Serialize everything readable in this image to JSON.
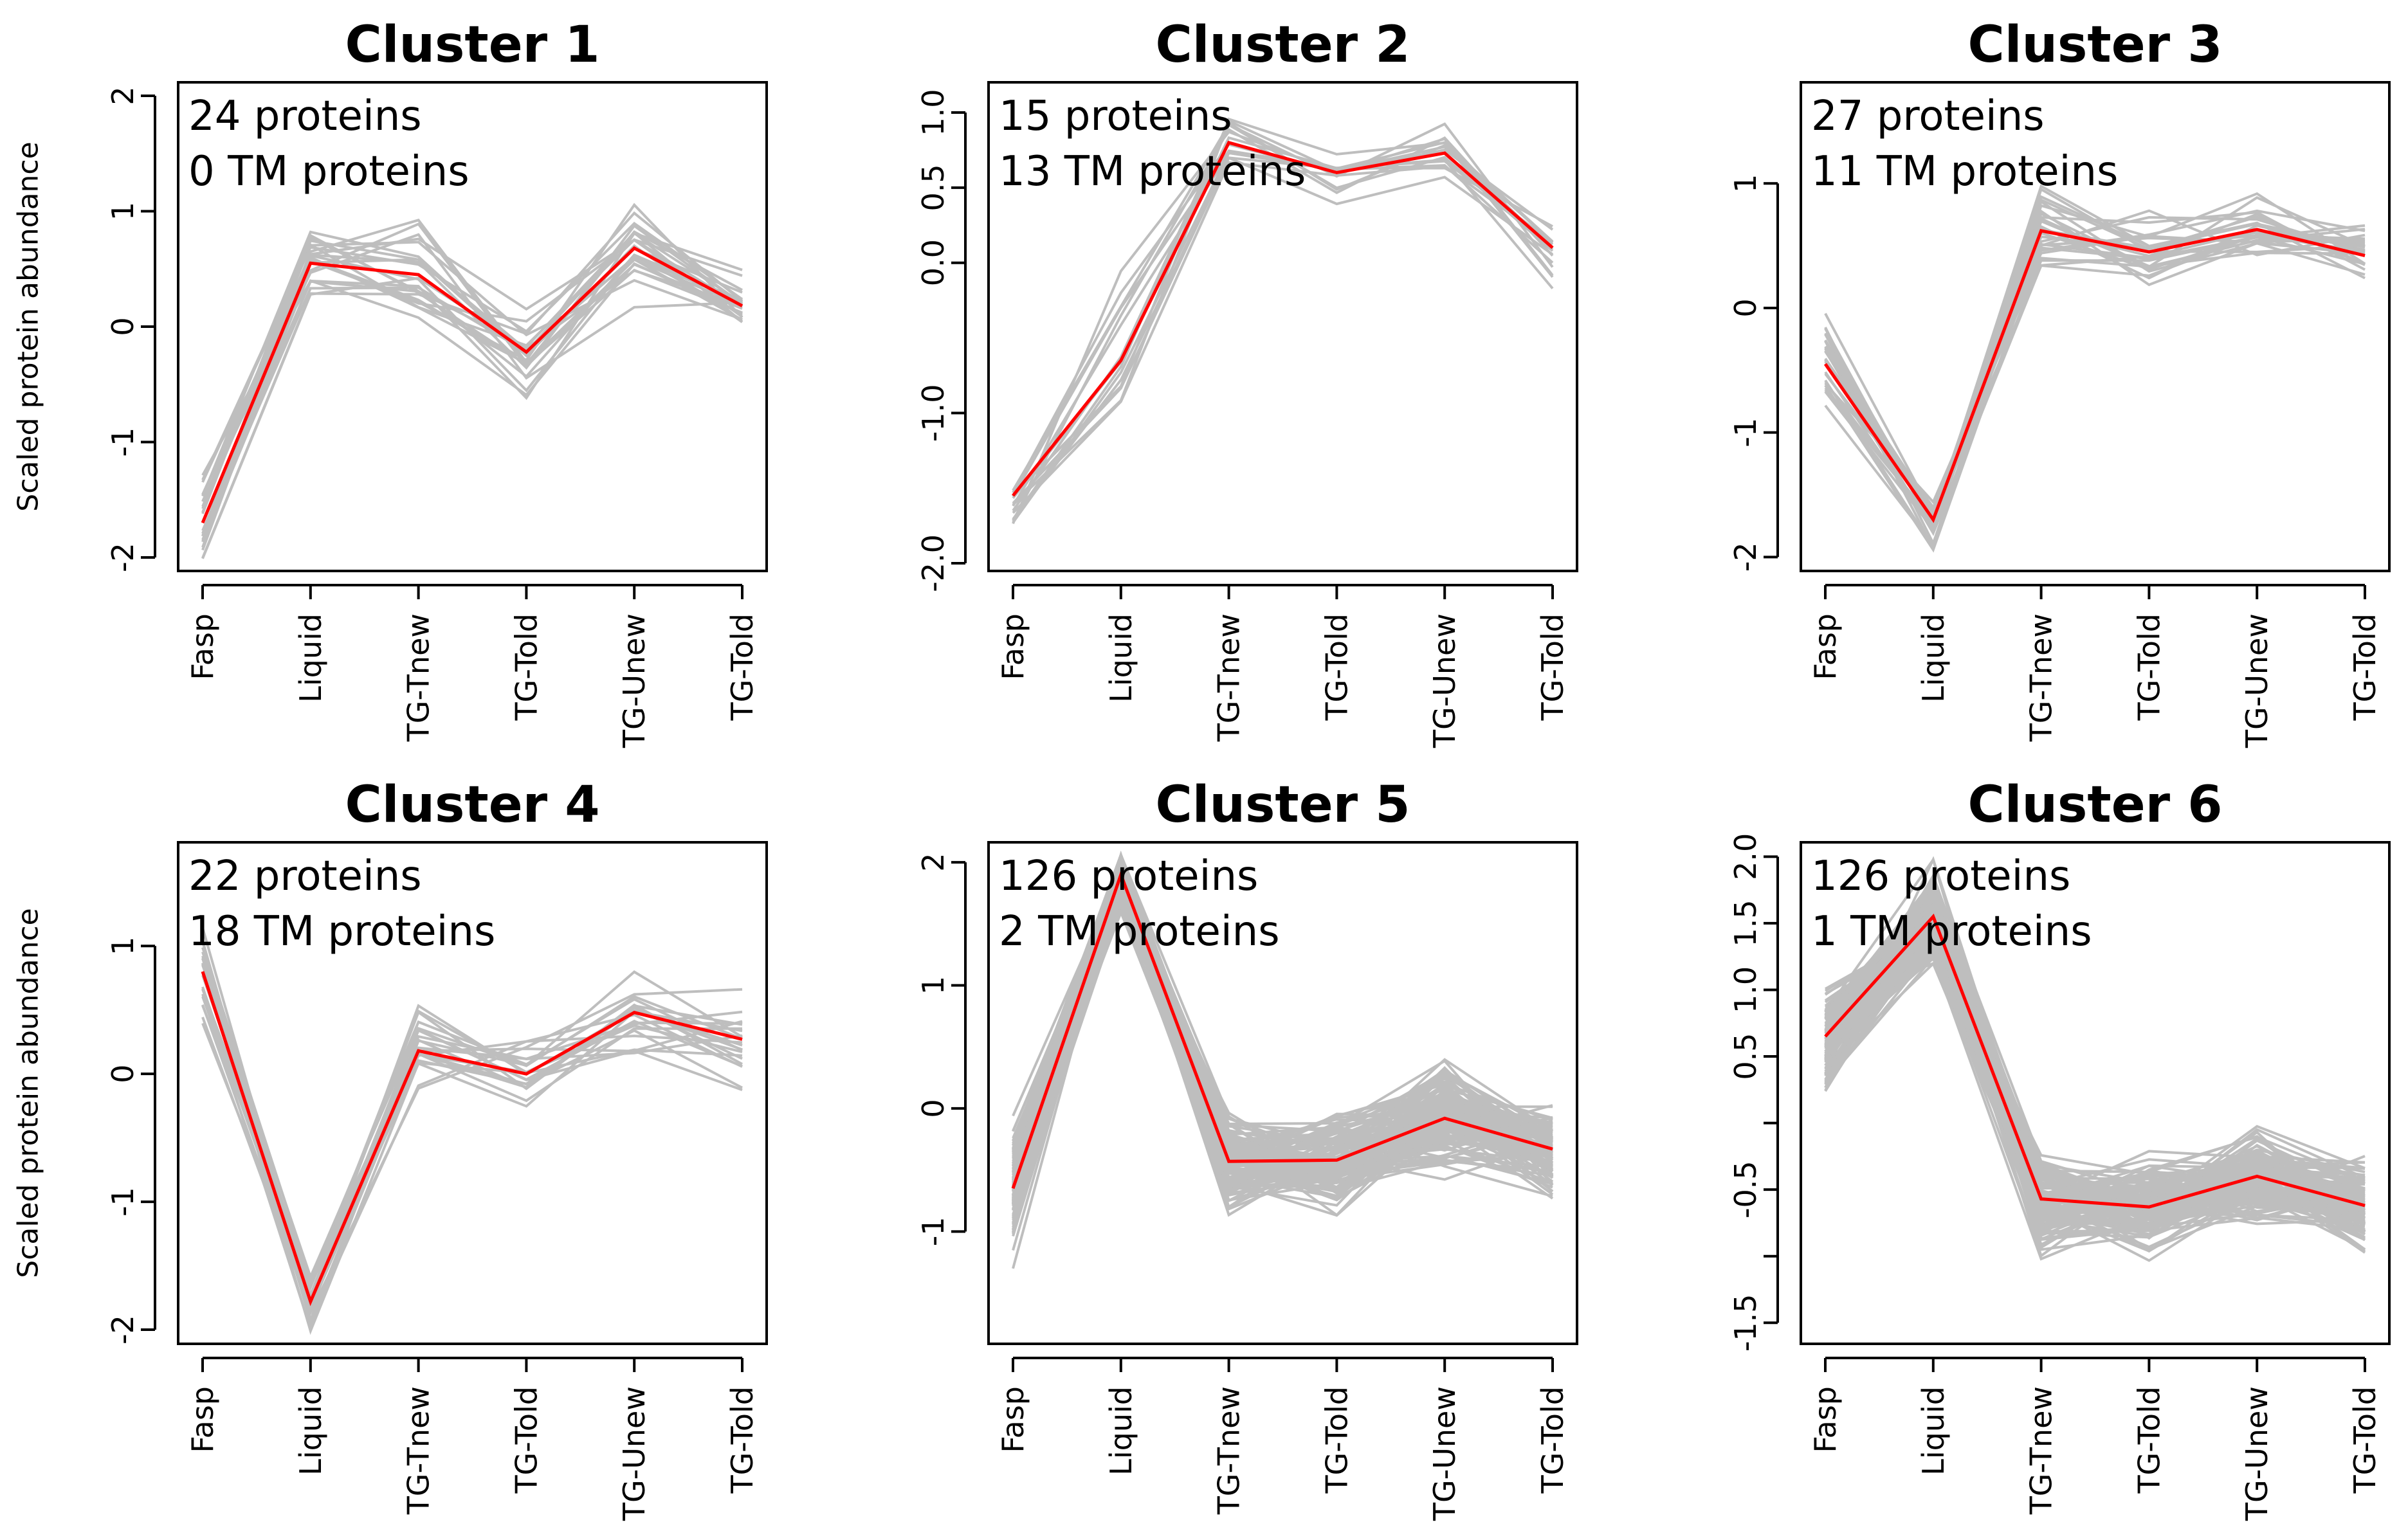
{
  "chart_data": [
    {
      "type": "line",
      "title": "Cluster 1",
      "protein_count_label": "24 proteins",
      "tm_count_label": "0 TM proteins",
      "ylabel": "Scaled protein abundance",
      "xlabel": "",
      "categories": [
        "Fasp",
        "Liquid",
        "TG-Tnew",
        "TG-Told",
        "TG-Unew",
        "TG-Told"
      ],
      "ylim": [
        -2.05,
        2.05
      ],
      "yticks": [
        -2,
        -1,
        0,
        1,
        2
      ],
      "ytick_labels": [
        "-2",
        "-1",
        "0",
        "1",
        "2"
      ],
      "highlight_color": "#ff0000",
      "background_color": "#bebebe",
      "centroid": [
        -1.7,
        0.55,
        0.45,
        -0.22,
        0.68,
        0.18
      ],
      "series_spread": [
        0.35,
        0.35,
        0.45,
        0.4,
        0.35,
        0.3
      ],
      "series_count": 24,
      "seed": 11
    },
    {
      "type": "line",
      "title": "Cluster 2",
      "protein_count_label": "15 proteins",
      "tm_count_label": "13 TM proteins",
      "ylabel": "",
      "xlabel": "",
      "categories": [
        "Fasp",
        "Liquid",
        "TG-Tnew",
        "TG-Told",
        "TG-Unew",
        "TG-Told"
      ],
      "ylim": [
        -2.0,
        1.15
      ],
      "yticks": [
        -2.0,
        -1.0,
        0.0,
        0.5,
        1.0
      ],
      "ytick_labels": [
        "-2.0",
        "-1.0",
        "0.0",
        "0.5",
        "1.0"
      ],
      "highlight_color": "#ff0000",
      "background_color": "#bebebe",
      "centroid": [
        -1.55,
        -0.65,
        0.8,
        0.6,
        0.73,
        0.1
      ],
      "series_spread": [
        0.2,
        0.4,
        0.2,
        0.15,
        0.2,
        0.25
      ],
      "series_count": 15,
      "seed": 23
    },
    {
      "type": "line",
      "title": "Cluster 3",
      "protein_count_label": "27 proteins",
      "tm_count_label": "11 TM proteins",
      "ylabel": "",
      "xlabel": "",
      "categories": [
        "Fasp",
        "Liquid",
        "TG-Tnew",
        "TG-Told",
        "TG-Unew",
        "TG-Told"
      ],
      "ylim": [
        -2.05,
        1.75
      ],
      "yticks": [
        -2,
        -1,
        0,
        1
      ],
      "ytick_labels": [
        "-2",
        "-1",
        "0",
        "1"
      ],
      "highlight_color": "#ff0000",
      "background_color": "#bebebe",
      "centroid": [
        -0.45,
        -1.7,
        0.62,
        0.45,
        0.63,
        0.42
      ],
      "series_spread": [
        0.35,
        0.2,
        0.3,
        0.35,
        0.3,
        0.2
      ],
      "series_count": 27,
      "seed": 37
    },
    {
      "type": "line",
      "title": "Cluster 4",
      "protein_count_label": "22 proteins",
      "tm_count_label": "18 TM proteins",
      "ylabel": "Scaled protein abundance",
      "xlabel": "",
      "categories": [
        "Fasp",
        "Liquid",
        "TG-Tnew",
        "TG-Told",
        "TG-Unew",
        "TG-Told"
      ],
      "ylim": [
        -2.05,
        1.75
      ],
      "yticks": [
        -2,
        -1,
        0,
        1
      ],
      "ytick_labels": [
        "-2",
        "-1",
        "0",
        "1"
      ],
      "highlight_color": "#ff0000",
      "background_color": "#bebebe",
      "centroid": [
        0.8,
        -1.78,
        0.18,
        0.0,
        0.48,
        0.27
      ],
      "series_spread": [
        0.35,
        0.25,
        0.3,
        0.3,
        0.3,
        0.35
      ],
      "series_count": 22,
      "seed": 41
    },
    {
      "type": "line",
      "title": "Cluster 5",
      "protein_count_label": "126 proteins",
      "tm_count_label": "2 TM proteins",
      "ylabel": "",
      "xlabel": "",
      "categories": [
        "Fasp",
        "Liquid",
        "TG-Tnew",
        "TG-Told",
        "TG-Unew",
        "TG-Told"
      ],
      "ylim": [
        -1.85,
        2.1
      ],
      "yticks": [
        -1,
        0,
        1,
        2
      ],
      "ytick_labels": [
        "-1",
        "0",
        "1",
        "2"
      ],
      "highlight_color": "#ff0000",
      "background_color": "#bebebe",
      "centroid": [
        -0.65,
        1.9,
        -0.43,
        -0.42,
        -0.08,
        -0.33
      ],
      "series_spread": [
        0.45,
        0.25,
        0.35,
        0.35,
        0.35,
        0.3
      ],
      "series_count": 126,
      "seed": 53
    },
    {
      "type": "line",
      "title": "Cluster 6",
      "protein_count_label": "126 proteins",
      "tm_count_label": "1 TM proteins",
      "ylabel": "",
      "xlabel": "",
      "categories": [
        "Fasp",
        "Liquid",
        "TG-Tnew",
        "TG-Told",
        "TG-Unew",
        "TG-Told"
      ],
      "ylim": [
        -1.6,
        2.05
      ],
      "yticks": [
        -1.5,
        -1.0,
        -0.5,
        0.0,
        0.5,
        1.0,
        1.5,
        2.0
      ],
      "ytick_labels": [
        "-1.5",
        "",
        "-0.5",
        "",
        "0.5",
        "1.0",
        "1.5",
        "2.0"
      ],
      "highlight_color": "#ff0000",
      "background_color": "#bebebe",
      "centroid": [
        0.65,
        1.55,
        -0.57,
        -0.63,
        -0.4,
        -0.62
      ],
      "series_spread": [
        0.35,
        0.3,
        0.3,
        0.3,
        0.3,
        0.3
      ],
      "series_count": 126,
      "seed": 67
    }
  ]
}
